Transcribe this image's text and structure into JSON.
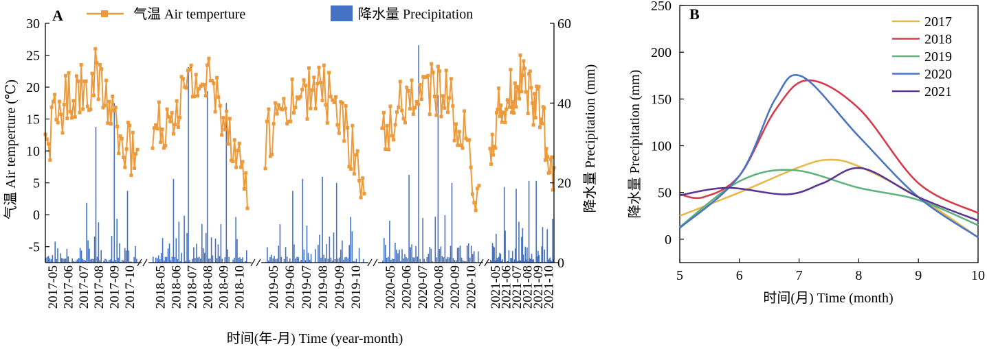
{
  "panel_a": {
    "label": "A",
    "legend_temp": "气温 Air temperture",
    "legend_precip": "降水量 Precipitation",
    "ylabel_left": "气温 Air temperture (℃)",
    "ylabel_right": "降水量 Precipitation (mm)",
    "xlabel": "时间(年-月) Time (year-month)"
  },
  "panel_b": {
    "label": "B",
    "ylabel": "降水量 Precipitation (mm)",
    "xlabel": "时间(月) Time (month)"
  },
  "colors": {
    "temp": "#ED9A3C",
    "precip": "#4472C4",
    "2017": "#E8B84A",
    "2018": "#D63B4B",
    "2019": "#5FB27C",
    "2020": "#4A74C0",
    "2021": "#5A3490"
  },
  "chart_data": [
    {
      "type": "bar+line",
      "title": "",
      "y_left_ticks": [
        -5,
        0,
        5,
        10,
        15,
        20,
        25,
        30
      ],
      "y_left_range": [
        -7.5,
        30
      ],
      "y_right_ticks": [
        0,
        20,
        40,
        60
      ],
      "y_right_range": [
        0,
        60
      ],
      "years": [
        {
          "months": [
            "2017-05",
            "2017-06",
            "2017-07",
            "2017-08",
            "2017-09",
            "2017-10"
          ],
          "temp_monthly_mean": [
            11.5,
            17.5,
            20.5,
            20.5,
            14.0,
            6.5
          ],
          "temp_max": 26.0,
          "precip_peaks": [
            {
              "month": "2017-08",
              "value": 34.0
            },
            {
              "month": "2017-09",
              "value": 40.0
            },
            {
              "month": "2017-07",
              "value": 15.0
            },
            {
              "month": "2017-10",
              "value": 18.0
            }
          ]
        },
        {
          "months": [
            "2018-05",
            "2018-06",
            "2018-07",
            "2018-08",
            "2018-09",
            "2018-10"
          ],
          "temp_monthly_mean": [
            12.0,
            16.5,
            20.5,
            21.0,
            14.5,
            4.0
          ],
          "temp_max": 24.5,
          "precip_peaks": [
            {
              "month": "2018-07",
              "value": 49.0
            },
            {
              "month": "2018-08",
              "value": 43.0
            },
            {
              "month": "2018-09",
              "value": 40.0
            },
            {
              "month": "2018-06",
              "value": 21.0
            }
          ]
        },
        {
          "months": [
            "2019-05",
            "2019-06",
            "2019-07",
            "2019-08",
            "2019-09",
            "2019-10"
          ],
          "temp_monthly_mean": [
            11.5,
            17.5,
            19.5,
            19.5,
            14.0,
            4.0
          ],
          "temp_max": 23.0,
          "precip_peaks": [
            {
              "month": "2019-07",
              "value": 21.0
            },
            {
              "month": "2019-08",
              "value": 21.5
            },
            {
              "month": "2019-06",
              "value": 18.0
            },
            {
              "month": "2019-09",
              "value": 20.0
            }
          ]
        },
        {
          "months": [
            "2020-05",
            "2020-06",
            "2020-07",
            "2020-08",
            "2020-09",
            "2020-10"
          ],
          "temp_monthly_mean": [
            11.5,
            17.5,
            19.5,
            20.0,
            14.5,
            3.0
          ],
          "temp_max": 22.5,
          "precip_peaks": [
            {
              "month": "2020-07",
              "value": 54.5
            },
            {
              "month": "2020-08",
              "value": 42.0
            },
            {
              "month": "2020-06",
              "value": 22.0
            },
            {
              "month": "2020-09",
              "value": 20.0
            }
          ]
        },
        {
          "months": [
            "2021-05",
            "2021-06",
            "2021-07",
            "2021-08",
            "2021-09",
            "2021-10"
          ],
          "temp_monthly_mean": [
            11.0,
            17.5,
            20.5,
            20.0,
            15.5,
            3.5
          ],
          "temp_max": 25.0,
          "precip_peaks": [
            {
              "month": "2021-06",
              "value": 19.0
            },
            {
              "month": "2021-07",
              "value": 18.5
            },
            {
              "month": "2021-08",
              "value": 20.5
            },
            {
              "month": "2021-09",
              "value": 20.5
            }
          ]
        }
      ]
    },
    {
      "type": "line",
      "title": "",
      "x": [
        5,
        6,
        7,
        8,
        9,
        10
      ],
      "x_ticks": [
        5,
        6,
        7,
        8,
        9,
        10
      ],
      "y_ticks": [
        0,
        50,
        100,
        150,
        200,
        250
      ],
      "ylim": [
        -25,
        250
      ],
      "legend_position": "top-right",
      "series": [
        {
          "name": "2017",
          "points": [
            [
              5,
              25
            ],
            [
              6,
              50
            ],
            [
              7,
              77
            ],
            [
              7.5,
              85
            ],
            [
              8,
              78
            ],
            [
              9,
              45
            ],
            [
              10,
              2
            ]
          ]
        },
        {
          "name": "2018",
          "points": [
            [
              5,
              48
            ],
            [
              5.4,
              45
            ],
            [
              6,
              68
            ],
            [
              6.6,
              138
            ],
            [
              7.15,
              170
            ],
            [
              8,
              140
            ],
            [
              9,
              60
            ],
            [
              10,
              28
            ]
          ]
        },
        {
          "name": "2019",
          "points": [
            [
              5,
              13
            ],
            [
              6,
              62
            ],
            [
              6.9,
              74
            ],
            [
              8,
              55
            ],
            [
              9,
              42
            ],
            [
              10,
              15
            ]
          ]
        },
        {
          "name": "2020",
          "points": [
            [
              5,
              12
            ],
            [
              6,
              68
            ],
            [
              6.6,
              150
            ],
            [
              7.05,
              174
            ],
            [
              8,
              110
            ],
            [
              9,
              45
            ],
            [
              10,
              2
            ]
          ]
        },
        {
          "name": "2021",
          "points": [
            [
              5,
              47
            ],
            [
              5.8,
              55
            ],
            [
              6.8,
              48
            ],
            [
              7.4,
              60
            ],
            [
              8.05,
              76
            ],
            [
              9,
              45
            ],
            [
              10,
              20
            ]
          ]
        }
      ]
    }
  ]
}
